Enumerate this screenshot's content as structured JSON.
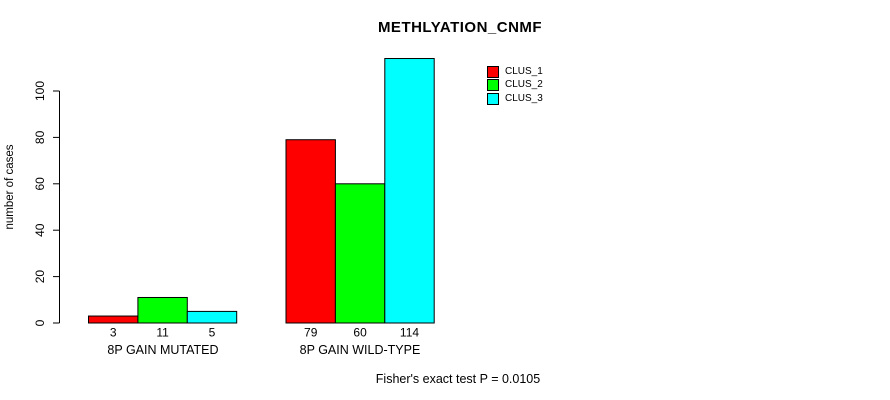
{
  "figure": {
    "title": "METHLYATION_CNMF",
    "y_axis_label": "number of cases",
    "caption": "Fisher's exact test P = 0.0105",
    "background_color": "#ffffff",
    "axis_color": "#000000"
  },
  "legend": {
    "items": [
      {
        "label": "CLUS_1",
        "color": "#ff0000"
      },
      {
        "label": "CLUS_2",
        "color": "#00ff00"
      },
      {
        "label": "CLUS_3",
        "color": "#00ffff"
      }
    ]
  },
  "chart_data": {
    "type": "bar",
    "title": "METHLYATION_CNMF",
    "xlabel": "",
    "ylabel": "number of cases",
    "categories": [
      "8P GAIN MUTATED",
      "8P GAIN WILD-TYPE"
    ],
    "series": [
      {
        "name": "CLUS_1",
        "color": "#ff0000",
        "values": [
          3,
          79
        ]
      },
      {
        "name": "CLUS_2",
        "color": "#00ff00",
        "values": [
          11,
          60
        ]
      },
      {
        "name": "CLUS_3",
        "color": "#00ffff",
        "values": [
          5,
          114
        ]
      }
    ],
    "value_labels": [
      [
        "3",
        "11",
        "5"
      ],
      [
        "79",
        "60",
        "114"
      ]
    ],
    "yticks": [
      0,
      20,
      40,
      60,
      80,
      100
    ],
    "ylim": [
      0,
      114
    ],
    "grid": false,
    "legend_position": "top-right",
    "bar_outline_color": "#000000",
    "annotation": "Fisher's exact test P = 0.0105"
  }
}
